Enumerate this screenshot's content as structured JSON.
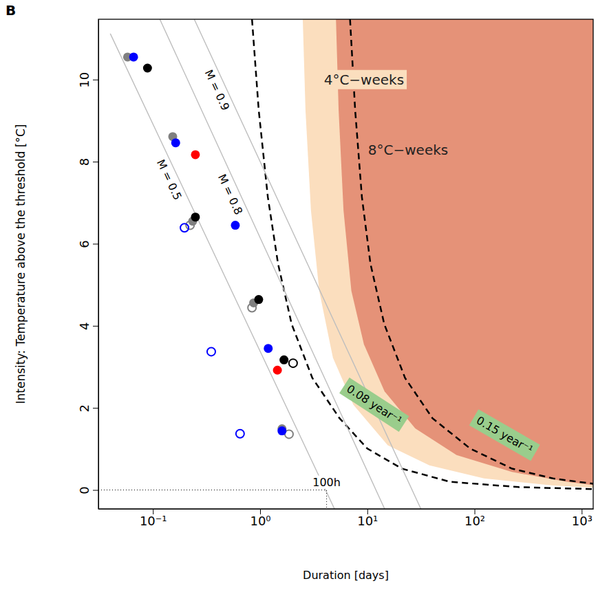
{
  "chart_data": {
    "type": "scatter",
    "panel_label": "B",
    "x_label": "Duration [days]",
    "y_label": "Intensity: Temperature above the threshold [°C]",
    "log": "x",
    "xlim": [
      0.031,
      1280
    ],
    "ylim": [
      -0.46,
      11.47
    ],
    "xticks": [
      {
        "value": 0.1,
        "label": "10⁻¹"
      },
      {
        "value": 1,
        "label": "10⁰"
      },
      {
        "value": 10,
        "label": "10¹"
      },
      {
        "value": 100,
        "label": "10²"
      },
      {
        "value": 1000,
        "label": "10³"
      }
    ],
    "yticks": [
      0,
      2,
      4,
      6,
      8,
      10
    ],
    "series": [
      {
        "color": "#808080",
        "marker": "circle",
        "x": [
          0.058,
          0.153,
          0.235,
          0.87,
          1.6
        ],
        "values": [
          10.55,
          8.61,
          6.55,
          4.56,
          1.49
        ]
      },
      {
        "color": "#808080",
        "marker": "open_circle",
        "x": [
          0.222,
          0.84,
          1.86
        ],
        "values": [
          6.45,
          4.44,
          1.36
        ]
      },
      {
        "color": "#0000ff",
        "marker": "circle",
        "x": [
          0.066,
          0.163,
          0.587,
          1.19,
          1.6
        ],
        "values": [
          10.55,
          8.46,
          6.45,
          3.45,
          1.44
        ]
      },
      {
        "color": "#0000ff",
        "marker": "open_circle",
        "x": [
          0.197,
          0.35,
          0.65
        ],
        "values": [
          6.39,
          3.37,
          1.37
        ]
      },
      {
        "color": "#000000",
        "marker": "circle",
        "x": [
          0.089,
          0.249,
          0.97,
          1.67
        ],
        "values": [
          10.28,
          6.65,
          4.64,
          3.17
        ]
      },
      {
        "color": "#000000",
        "marker": "open_circle",
        "x": [
          2.03
        ],
        "values": [
          3.09
        ]
      },
      {
        "color": "#ff0000",
        "marker": "circle",
        "x": [
          0.249,
          1.45
        ],
        "values": [
          8.17,
          2.92
        ]
      }
    ],
    "reference_lines": [
      {
        "label": "M = 0.5",
        "color": "#bebebe",
        "x": [
          0.04,
          5.0
        ],
        "y": [
          11.12,
          -0.49
        ]
      },
      {
        "label": "M = 0.8",
        "color": "#bebebe",
        "x": [
          0.116,
          14.5
        ],
        "y": [
          11.47,
          -0.46
        ]
      },
      {
        "label": "M = 0.9",
        "color": "#bebebe",
        "x": [
          0.243,
          31.6
        ],
        "y": [
          11.47,
          -0.46
        ]
      }
    ],
    "curves": [
      {
        "label": "0.08 year⁻¹",
        "label_x": 11.6,
        "label_y": 2.08,
        "color": "#000000",
        "line_style": "dashed",
        "x": [
          0.84,
          0.97,
          1.18,
          1.47,
          1.97,
          3.07,
          5.5,
          10,
          21,
          59,
          258,
          1300
        ],
        "y": [
          11.47,
          9.26,
          7.14,
          5.51,
          4.04,
          2.73,
          1.75,
          1.01,
          0.52,
          0.2,
          0.07,
          0.02
        ]
      },
      {
        "label": "0.15 year⁻¹",
        "label_x": 191,
        "label_y": 1.34,
        "color": "#000000",
        "line_style": "dashed",
        "x": [
          6.9,
          7.7,
          8.9,
          10.7,
          14.4,
          22.5,
          40.5,
          91,
          224,
          540,
          1300
        ],
        "y": [
          11.47,
          9.26,
          7.14,
          5.51,
          4.04,
          2.73,
          1.75,
          1.01,
          0.52,
          0.28,
          0.15
        ]
      }
    ],
    "regions": [
      {
        "label": "4°C−weeks",
        "label_x": 9.3,
        "label_y": 10.0,
        "color": "#fbdebe",
        "x": [
          2.5,
          2.65,
          2.98,
          3.56,
          4.78,
          7.4,
          15.5,
          38,
          123,
          537,
          1350
        ],
        "y": [
          11.47,
          9.26,
          6.81,
          4.85,
          3.22,
          2.08,
          1.09,
          0.6,
          0.28,
          0.11,
          0.05
        ]
      },
      {
        "label": "8°C−weeks",
        "label_x": 24,
        "label_y": 8.28,
        "color": "#e59278",
        "x": [
          5.1,
          5.4,
          6.0,
          7.1,
          9.3,
          14.5,
          28,
          68,
          223,
          720,
          1350
        ],
        "y": [
          11.47,
          9.26,
          6.81,
          4.85,
          3.55,
          2.4,
          1.5,
          0.85,
          0.44,
          0.2,
          0.11
        ]
      }
    ],
    "threshold": {
      "label": "100h",
      "x": 4.17,
      "y": 0
    }
  }
}
